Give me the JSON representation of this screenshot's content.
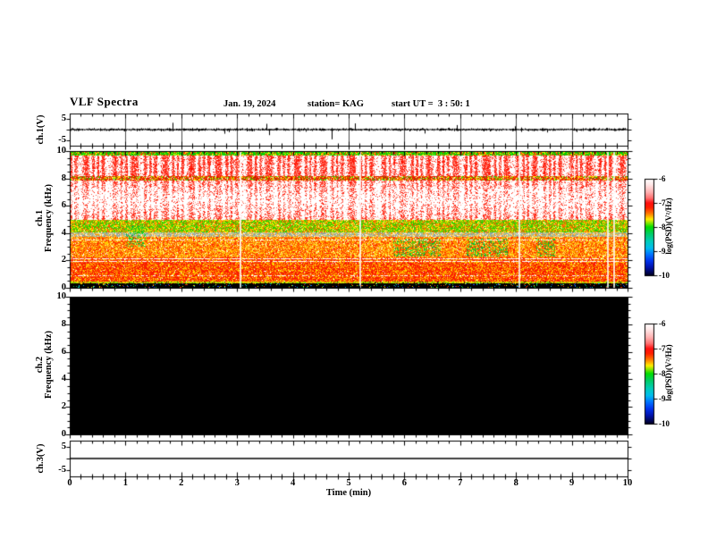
{
  "header": {
    "title": "VLF Spectra",
    "date": "Jan. 19, 2024",
    "station": "station= KAG",
    "start_ut": "start UT =  3 : 50: 1"
  },
  "xaxis": {
    "label": "Time (min)",
    "min": 0,
    "max": 10,
    "major_ticks": [
      0,
      1,
      2,
      3,
      4,
      5,
      6,
      7,
      8,
      9,
      10
    ],
    "minor_step": 0.2
  },
  "panels": {
    "ch1_volt": {
      "ylabel": "ch.1(V)",
      "ymin": -7.8,
      "ymax": 7.8,
      "yticks": [
        {
          "v": 5,
          "label": "5"
        },
        {
          "v": 0,
          "label": ""
        },
        {
          "v": -5,
          "label": "-5"
        }
      ],
      "minute_gridlines": true
    },
    "ch1_spec": {
      "ylabel_ch": "ch.1",
      "ylabel_axis": "Frequency (kHz)",
      "ymin": 0,
      "ymax": 10,
      "yticks_major": [
        0,
        2,
        4,
        6,
        8,
        10
      ],
      "yminor_step": 0.5
    },
    "ch2_spec": {
      "ylabel_ch": "ch.2",
      "ylabel_axis": "Frequency (kHz)",
      "ymin": 0,
      "ymax": 10,
      "yticks_major": [
        0,
        2,
        4,
        6,
        8,
        10
      ],
      "yminor_step": 0.5,
      "fill": "#000000"
    },
    "ch3_volt": {
      "ylabel": "ch.3(V)",
      "ymin": -7.8,
      "ymax": 7.8,
      "yticks": [
        {
          "v": 5,
          "label": "5"
        },
        {
          "v": 0,
          "label": ""
        },
        {
          "v": -5,
          "label": "-5"
        }
      ]
    }
  },
  "colorbar": {
    "label": "log(PSD)(V²/Hz)",
    "ticks": [
      "-6",
      "-7",
      "-8",
      "-9",
      "-10"
    ],
    "stops": [
      [
        0,
        "#ffffff"
      ],
      [
        0.06,
        "#ffe8e8"
      ],
      [
        0.14,
        "#ffb0b0"
      ],
      [
        0.2,
        "#ff7070"
      ],
      [
        0.25,
        "#ff1010"
      ],
      [
        0.3,
        "#ff2000"
      ],
      [
        0.36,
        "#ff7700"
      ],
      [
        0.42,
        "#ffee00"
      ],
      [
        0.5,
        "#00dd00"
      ],
      [
        0.57,
        "#00cc66"
      ],
      [
        0.65,
        "#00ccbb"
      ],
      [
        0.72,
        "#00bbee"
      ],
      [
        0.78,
        "#0077ff"
      ],
      [
        0.85,
        "#0033ee"
      ],
      [
        0.92,
        "#0011aa"
      ],
      [
        1,
        "#000022"
      ]
    ]
  },
  "chart_data": [
    {
      "type": "line",
      "name": "ch.1 voltage waveform",
      "panel": "ch.1(V)",
      "x_unit": "min",
      "y_unit": "V",
      "x_range": [
        0,
        10
      ],
      "y_range": [
        -5,
        5
      ],
      "baseline_v": 0,
      "noise_peak_to_peak_v": 1.6,
      "spikes": [
        {
          "t": 1.84,
          "v": 3.3
        },
        {
          "t": 2.77,
          "v": -2.0
        },
        {
          "t": 3.52,
          "v": 2.8
        },
        {
          "t": 3.58,
          "v": -2.7
        },
        {
          "t": 4.69,
          "v": -4.7
        },
        {
          "t": 5.11,
          "v": 3.0
        },
        {
          "t": 6.36,
          "v": -1.9
        },
        {
          "t": 6.94,
          "v": 2.2
        },
        {
          "t": 7.98,
          "v": 1.6
        },
        {
          "t": 8.55,
          "v": -1.4
        }
      ]
    },
    {
      "type": "heatmap",
      "name": "ch.1 VLF spectrogram",
      "panel": "ch.1 Frequency (kHz)",
      "x_range": [
        0,
        10
      ],
      "y_range": [
        0,
        10
      ],
      "palette": "log PSD -6 (white/red) to -10 (black) rainbow, see colorbar",
      "bands": [
        {
          "f": [
            9.7,
            10.0
          ],
          "colors": [
            "#00cc00",
            "#33dd00",
            "#ffee00",
            "#ff3300",
            "#00cc00"
          ],
          "density": 0.97,
          "base": "#ff5500"
        },
        {
          "f": [
            8.15,
            9.7
          ],
          "streak": true,
          "colors": [
            "#ff1100",
            "#ff4433",
            "#ff8877",
            "#ffc4bb"
          ],
          "density": 0.93,
          "base": "#ffffff"
        },
        {
          "f": [
            7.85,
            8.15
          ],
          "colors": [
            "#ee2200",
            "#cc1100",
            "#ff6600",
            "#ffee00",
            "#33cc00",
            "#ee2200"
          ],
          "density": 0.9,
          "base": "#ffdddd"
        },
        {
          "f": [
            4.95,
            7.85
          ],
          "streak": true,
          "profile": "edge",
          "colors": [
            "#ff2211",
            "#ff5544",
            "#ff9988",
            "#ffccc4"
          ],
          "density": 0.85,
          "base": "#ffffff"
        },
        {
          "f": [
            4.05,
            4.95
          ],
          "colors": [
            "#22cc00",
            "#77dd00",
            "#ffee00",
            "#ffaa00",
            "#ff5500",
            "#44cc00"
          ],
          "density": 0.96,
          "base": "#ffff99"
        },
        {
          "f": [
            3.75,
            4.05
          ],
          "colors": [
            "#99bbaa",
            "#8899aa",
            "#aacc88",
            "#ff9900",
            "#ffcc66"
          ],
          "density": 0.85,
          "base": "#ffeedd"
        },
        {
          "f": [
            2.2,
            3.75
          ],
          "colors": [
            "#ffcc00",
            "#ff9900",
            "#ff5500",
            "#ff2200",
            "#ffee55",
            "#ff7700"
          ],
          "density": 0.97,
          "base": "#ffffff"
        },
        {
          "f": [
            0.45,
            2.2
          ],
          "colors": [
            "#ff1100",
            "#ee2200",
            "#ff5500",
            "#ff9900",
            "#ffdd00",
            "#ff2200"
          ],
          "density": 0.985,
          "base": "#ffffff"
        },
        {
          "f": [
            0.3,
            0.45
          ],
          "colors": [
            "#ffee00",
            "#66dd00",
            "#ff7700",
            "#ccdd00"
          ],
          "density": 0.9,
          "base": "#331900"
        },
        {
          "f": [
            0.0,
            0.3
          ],
          "colors": [
            "#2244ff",
            "#00cc44",
            "#00cce0",
            "#ff3300",
            "#ffee00"
          ],
          "density": 0.12,
          "base": "#000000"
        }
      ],
      "white_lines": [
        {
          "f": 3.5,
          "strength": 0.5
        },
        {
          "f": 2.1,
          "strength": 0.8
        },
        {
          "f": 1.95,
          "strength": 0.8
        },
        {
          "f": 0.9,
          "strength": 0.4
        }
      ],
      "white_columns_t": [
        3.04,
        5.2,
        8.04,
        9.63,
        9.75
      ],
      "green_patches": [
        {
          "t": [
            5.8,
            6.65
          ],
          "f": [
            2.3,
            3.6
          ]
        },
        {
          "t": [
            7.1,
            7.85
          ],
          "f": [
            2.3,
            3.6
          ]
        },
        {
          "t": [
            8.35,
            8.7
          ],
          "f": [
            2.3,
            3.6
          ]
        },
        {
          "t": [
            1.0,
            1.35
          ],
          "f": [
            3.0,
            4.6
          ]
        }
      ]
    },
    {
      "type": "heatmap",
      "name": "ch.2 VLF spectrogram",
      "panel": "ch.2 Frequency (kHz)",
      "x_range": [
        0,
        10
      ],
      "y_range": [
        0,
        10
      ],
      "value": "no signal - uniform black (log PSD <= -10)"
    },
    {
      "type": "line",
      "name": "ch.3 voltage waveform",
      "panel": "ch.3(V)",
      "x_range": [
        0,
        10
      ],
      "y_range": [
        -5,
        5
      ],
      "value": "constant 0 V flat line"
    }
  ]
}
